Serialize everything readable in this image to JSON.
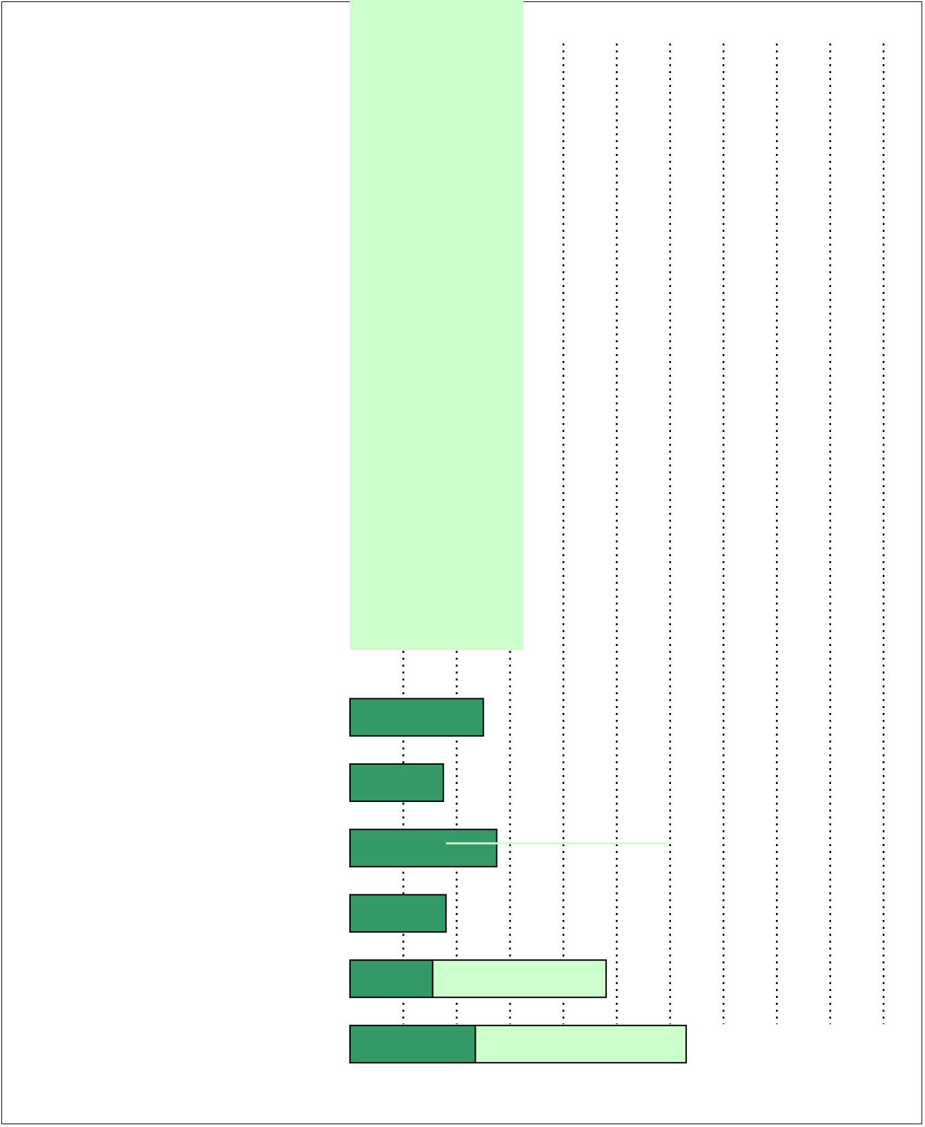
{
  "chart_data": {
    "type": "bar",
    "orientation": "horizontal",
    "stacked": true,
    "title": "",
    "xlabel": "",
    "ylabel": "",
    "categories": [
      "",
      "",
      "",
      "",
      "",
      "",
      "",
      "",
      "",
      "",
      "",
      "",
      "",
      "",
      "",
      ""
    ],
    "xlim": [
      0,
      10
    ],
    "xticks": [
      1,
      2,
      3,
      4,
      5,
      6,
      7,
      8,
      9,
      10
    ],
    "grid": "vertical dotted",
    "legend": "none",
    "series": [
      {
        "color": "#339966",
        "values": [
          0,
          0,
          0,
          0,
          0,
          0,
          0,
          0,
          0,
          0,
          2.5,
          1.75,
          2.75,
          1.8,
          1.55,
          2.35
        ]
      },
      {
        "color": "#ccffcc",
        "values": [
          0,
          0,
          0,
          0,
          0,
          0,
          0,
          0,
          0,
          0,
          0,
          0,
          0,
          0,
          3.25,
          3.95
        ]
      }
    ],
    "overlay": {
      "color": "#ccffcc",
      "x_range": [
        0,
        3.25
      ],
      "covers_categories": [
        0,
        9
      ]
    }
  }
}
